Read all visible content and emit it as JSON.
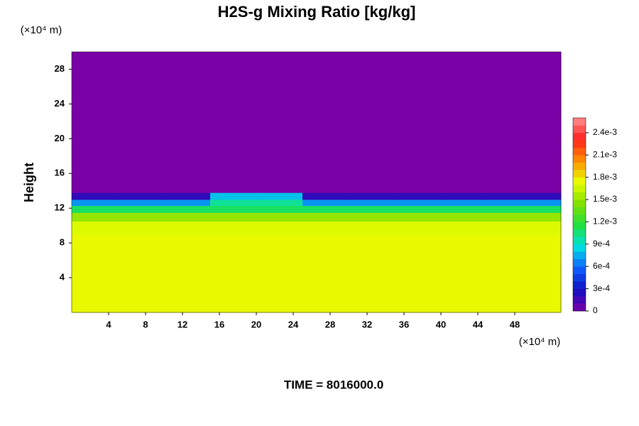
{
  "chart_data": {
    "type": "heatmap",
    "title": "H2S-g Mixing Ratio [kg/kg]",
    "y_label": "Height",
    "x_unit": "(×10⁴ m)",
    "y_unit": "(×10⁴ m)",
    "annotation": "TIME = 8016000.0",
    "xlim": [
      0,
      53
    ],
    "ylim": [
      0,
      30
    ],
    "xticks": [
      4,
      8,
      12,
      16,
      20,
      24,
      28,
      32,
      36,
      40,
      44,
      48
    ],
    "yticks": [
      4,
      8,
      12,
      16,
      20,
      24,
      28
    ],
    "x_edges": [
      0,
      5,
      10,
      15,
      20,
      25,
      30,
      35,
      40,
      45,
      53
    ],
    "y_edges": [
      0,
      9,
      10.5,
      11.5,
      12.3,
      13,
      13.8,
      30
    ],
    "z": [
      [
        0.00175,
        0.00175,
        0.00175,
        0.00175,
        0.00175,
        0.00175,
        0.00175,
        0.00175,
        0.00175,
        0.00175
      ],
      [
        0.0017,
        0.0017,
        0.0017,
        0.0017,
        0.0017,
        0.0017,
        0.0017,
        0.0017,
        0.0017,
        0.0017
      ],
      [
        0.0015,
        0.0015,
        0.0015,
        0.0015,
        0.0015,
        0.0015,
        0.0015,
        0.0015,
        0.0015,
        0.0015
      ],
      [
        0.0011,
        0.0011,
        0.0011,
        0.0011,
        0.0011,
        0.0011,
        0.0011,
        0.0011,
        0.0011,
        0.0011
      ],
      [
        0.0007,
        0.0007,
        0.0007,
        0.001,
        0.001,
        0.0007,
        0.0007,
        0.0007,
        0.0007,
        0.0007
      ],
      [
        0.0002,
        0.0002,
        0.0002,
        0.0008,
        0.0008,
        0.0002,
        0.0002,
        0.0002,
        0.0002,
        0.0002
      ],
      [
        0,
        0,
        0,
        0,
        0,
        0,
        0,
        0,
        0,
        0
      ]
    ],
    "zlim": [
      0,
      0.0026
    ],
    "zticks": [
      0,
      {
        "value": 0.0003,
        "label": "3e-4"
      },
      {
        "value": 0.0006,
        "label": "6e-4"
      },
      {
        "value": 0.0009,
        "label": "9e-4"
      },
      {
        "value": 0.0012,
        "label": "1.2e-3"
      },
      {
        "value": 0.0015,
        "label": "1.5e-3"
      },
      {
        "value": 0.0018,
        "label": "1.8e-3"
      },
      {
        "value": 0.0021,
        "label": "2.1e-3"
      },
      {
        "value": 0.0024,
        "label": "2.4e-3"
      }
    ],
    "colormap": [
      "#7a00a8",
      "#1010c0",
      "#1060ff",
      "#00e0e0",
      "#20e040",
      "#80e000",
      "#e8ff00",
      "#ff9000",
      "#ff2020",
      "#ff9090"
    ]
  }
}
